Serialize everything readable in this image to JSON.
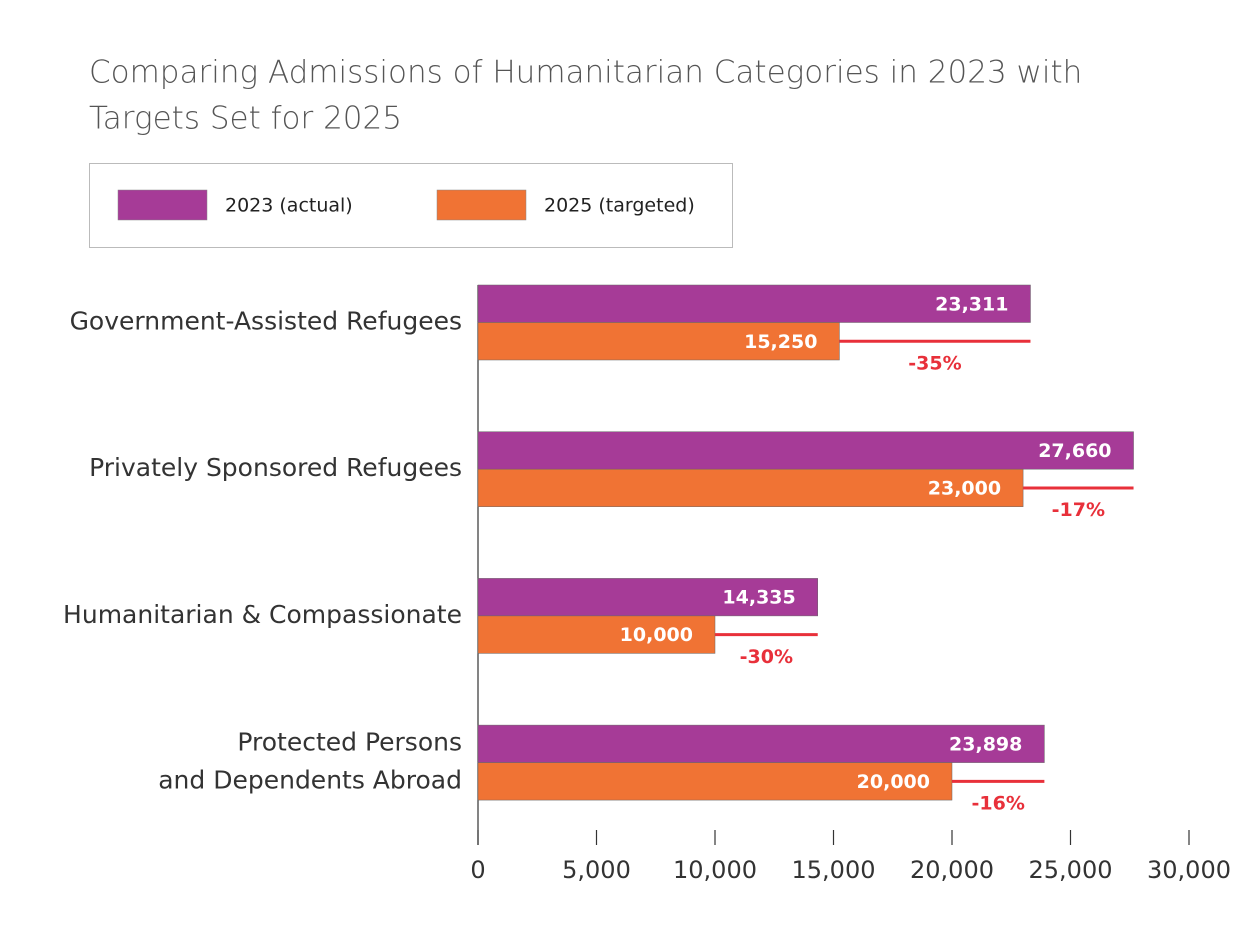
{
  "chart_data": {
    "type": "bar",
    "orientation": "horizontal",
    "title": [
      "Comparing Admissions of Humanitarian Categories in 2023 with",
      "Targets Set for 2025"
    ],
    "categories": [
      "Government-Assisted Refugees",
      "Privately Sponsored Refugees",
      "Humanitarian & Compassionate",
      "Protected Persons\nand Dependents Abroad"
    ],
    "series": [
      {
        "name": "2023 (actual)",
        "color": "#a63b97",
        "values": [
          23311,
          27660,
          14335,
          23898
        ],
        "value_labels": [
          "23,311",
          "27,660",
          "14,335",
          "23,898"
        ]
      },
      {
        "name": "2025 (targeted)",
        "color": "#f07334",
        "values": [
          15250,
          23000,
          10000,
          20000
        ],
        "value_labels": [
          "15,250",
          "23,000",
          "10,000",
          "20,000"
        ]
      }
    ],
    "change_values": [
      -35,
      -17,
      -30,
      -16
    ],
    "change_labels": [
      "-35%",
      "-17%",
      "-30%",
      "-16%"
    ],
    "change_color": "#e8303a",
    "xlim": [
      0,
      30000
    ],
    "xticks": [
      0,
      {
        "value": 5000,
        "label": "5,000"
      },
      {
        "value": 10000,
        "label": "10,000"
      },
      {
        "value": 15000,
        "label": "15,000"
      },
      {
        "value": 20000,
        "label": "20,000"
      },
      {
        "value": 25000,
        "label": "25,000"
      },
      {
        "value": 30000,
        "label": "30,000"
      }
    ]
  }
}
